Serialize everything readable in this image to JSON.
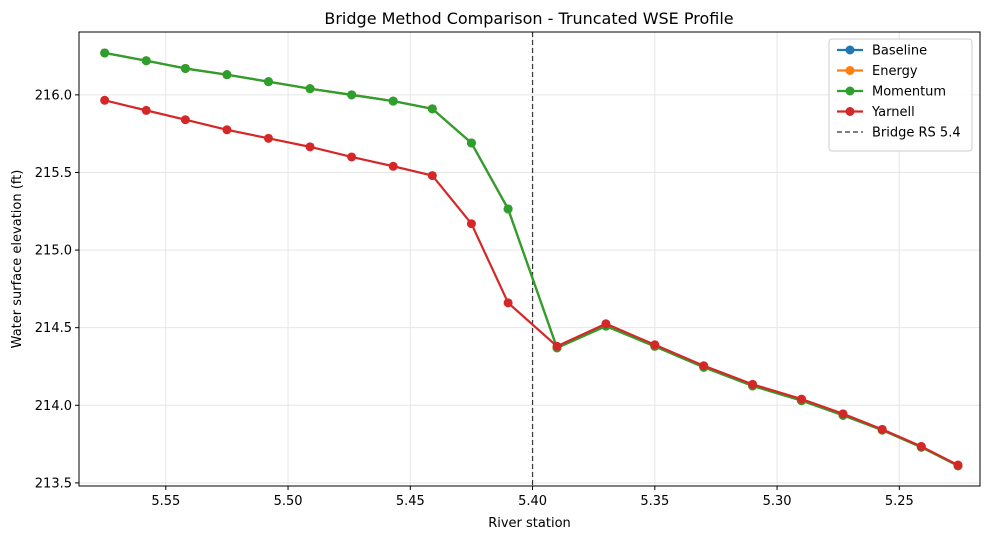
{
  "chart_data": {
    "type": "line",
    "title": "Bridge Method Comparison - Truncated WSE Profile",
    "xlabel": "River station",
    "ylabel": "Water surface elevation (ft)",
    "x_axis_inverted": true,
    "xlim": [
      5.5855,
      5.217
    ],
    "ylim": [
      213.48,
      216.405
    ],
    "x_ticks": [
      5.55,
      5.5,
      5.45,
      5.4,
      5.35,
      5.3,
      5.25
    ],
    "x_tick_labels": [
      "5.55",
      "5.50",
      "5.45",
      "5.40",
      "5.35",
      "5.30",
      "5.25"
    ],
    "y_ticks": [
      213.5,
      214.0,
      214.5,
      215.0,
      215.5,
      216.0
    ],
    "y_tick_labels": [
      "213.5",
      "214.0",
      "214.5",
      "215.0",
      "215.5",
      "216.0"
    ],
    "grid": true,
    "legend_position": "top-right",
    "x": [
      5.575,
      5.558,
      5.542,
      5.525,
      5.508,
      5.491,
      5.474,
      5.457,
      5.441,
      5.425,
      5.41,
      5.39,
      5.37,
      5.35,
      5.33,
      5.31,
      5.29,
      5.273,
      5.257,
      5.241,
      5.226
    ],
    "series": [
      {
        "name": "Baseline",
        "color": "#1f77b4",
        "values": [
          216.27,
          216.22,
          216.17,
          216.13,
          216.085,
          216.04,
          216.0,
          215.96,
          215.91,
          215.69,
          215.265,
          214.37,
          214.51,
          214.38,
          214.245,
          214.125,
          214.03,
          213.935,
          213.84,
          213.73,
          213.61
        ]
      },
      {
        "name": "Energy",
        "color": "#ff7f0e",
        "values": [
          216.27,
          216.22,
          216.17,
          216.13,
          216.085,
          216.04,
          216.0,
          215.96,
          215.91,
          215.69,
          215.265,
          214.37,
          214.51,
          214.38,
          214.245,
          214.125,
          214.03,
          213.935,
          213.84,
          213.73,
          213.61
        ]
      },
      {
        "name": "Momentum",
        "color": "#2ca02c",
        "values": [
          216.27,
          216.22,
          216.17,
          216.13,
          216.085,
          216.04,
          216.0,
          215.96,
          215.91,
          215.69,
          215.265,
          214.37,
          214.51,
          214.38,
          214.245,
          214.125,
          214.03,
          213.935,
          213.84,
          213.73,
          213.61
        ]
      },
      {
        "name": "Yarnell",
        "color": "#d62728",
        "values": [
          215.965,
          215.9,
          215.84,
          215.775,
          215.72,
          215.665,
          215.6,
          215.54,
          215.48,
          215.17,
          214.66,
          214.38,
          214.525,
          214.39,
          214.255,
          214.135,
          214.04,
          213.945,
          213.845,
          213.735,
          213.615
        ]
      }
    ],
    "reference_line": {
      "name": "Bridge RS 5.4",
      "x": 5.4,
      "color": "#333333",
      "style": "dashed"
    }
  }
}
